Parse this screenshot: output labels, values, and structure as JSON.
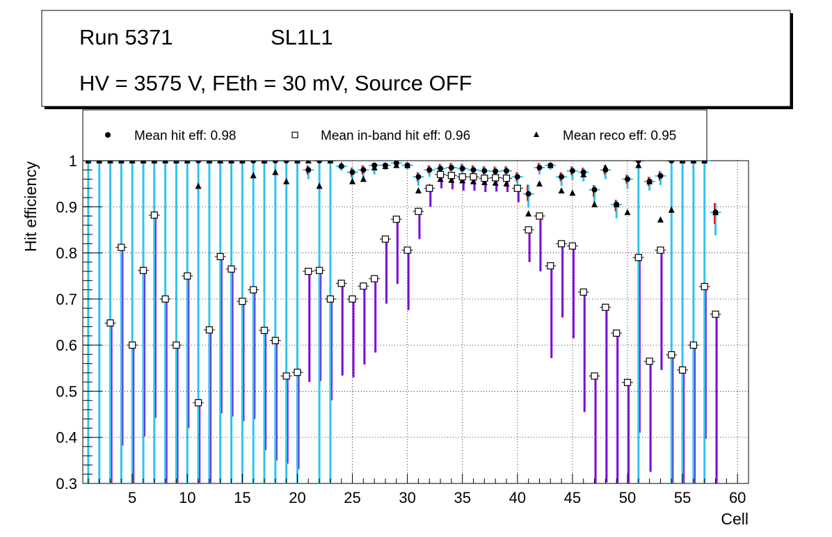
{
  "title_box": {
    "run": "Run 5371",
    "layer": "SL1L1",
    "conditions": "HV = 3575 V, FEth = 30 mV, Source OFF"
  },
  "legend": {
    "hit": "Mean hit  eff: 0.98",
    "inband": "Mean in-band hit eff: 0.96",
    "reco": "Mean reco eff: 0.95"
  },
  "colors": {
    "hit_err": "#ff0000",
    "inband_err": "#7a00d6",
    "reco_err": "#2ec4f0",
    "grid": "#000000"
  },
  "chart_data": {
    "type": "scatter",
    "title": "",
    "xlabel": "Cell",
    "ylabel": "Hit efficiency",
    "xlim": [
      0.5,
      61
    ],
    "ylim": [
      0.3,
      1.0
    ],
    "xticks": [
      5,
      10,
      15,
      20,
      25,
      30,
      35,
      40,
      45,
      50,
      55,
      60
    ],
    "yticks": [
      0.3,
      0.4,
      0.5,
      0.6,
      0.7,
      0.8,
      0.9,
      1.0
    ],
    "ytick_labels": [
      "0.3",
      "0.4",
      "0.5",
      "0.6",
      "0.7",
      "0.8",
      "0.9",
      "1"
    ],
    "cells": [
      1,
      2,
      3,
      4,
      5,
      6,
      7,
      8,
      9,
      10,
      11,
      12,
      13,
      14,
      15,
      16,
      17,
      18,
      19,
      20,
      21,
      22,
      23,
      24,
      25,
      26,
      27,
      28,
      29,
      30,
      31,
      32,
      33,
      34,
      35,
      36,
      37,
      38,
      39,
      40,
      41,
      42,
      43,
      44,
      45,
      46,
      47,
      48,
      49,
      50,
      51,
      52,
      53,
      54,
      55,
      56,
      57,
      58
    ],
    "series": [
      {
        "name": "Mean hit  eff: 0.98",
        "marker": "circle",
        "values": [
          1.0,
          1.0,
          1.0,
          1.0,
          1.0,
          1.0,
          1.0,
          1.0,
          1.0,
          1.0,
          1.0,
          1.0,
          1.0,
          1.0,
          1.0,
          1.0,
          1.0,
          1.0,
          1.0,
          1.0,
          0.98,
          1.0,
          1.0,
          0.988,
          0.975,
          0.98,
          0.99,
          0.99,
          0.995,
          0.99,
          0.965,
          0.98,
          0.983,
          0.985,
          0.983,
          0.98,
          0.978,
          0.977,
          0.978,
          0.965,
          0.928,
          0.985,
          0.99,
          0.965,
          0.978,
          0.975,
          0.937,
          0.98,
          0.905,
          0.96,
          1.0,
          0.955,
          0.967,
          1.0,
          1.0,
          1.0,
          1.0,
          0.888
        ],
        "err_low": [
          0.7,
          0.7,
          0.7,
          0.7,
          0.7,
          0.7,
          0.7,
          0.7,
          0.7,
          0.7,
          0.7,
          0.7,
          0.7,
          0.7,
          0.7,
          0.7,
          0.7,
          0.7,
          0.7,
          0.7,
          0.02,
          0.7,
          0.7,
          0.01,
          0.02,
          0.02,
          0.02,
          0.01,
          0.01,
          0.01,
          0.02,
          0.015,
          0.015,
          0.015,
          0.015,
          0.015,
          0.015,
          0.015,
          0.015,
          0.02,
          0.03,
          0.015,
          0.01,
          0.02,
          0.02,
          0.02,
          0.03,
          0.02,
          0.03,
          0.02,
          0.7,
          0.02,
          0.02,
          0.7,
          0.7,
          0.7,
          0.7,
          0.05
        ],
        "err_high": [
          0.0,
          0.0,
          0.0,
          0.0,
          0.0,
          0.0,
          0.0,
          0.0,
          0.0,
          0.0,
          0.0,
          0.0,
          0.0,
          0.0,
          0.0,
          0.0,
          0.0,
          0.0,
          0.0,
          0.0,
          0.01,
          0.0,
          0.0,
          0.005,
          0.01,
          0.01,
          0.005,
          0.005,
          0.003,
          0.005,
          0.01,
          0.01,
          0.01,
          0.01,
          0.01,
          0.01,
          0.01,
          0.01,
          0.01,
          0.01,
          0.02,
          0.01,
          0.005,
          0.01,
          0.01,
          0.01,
          0.01,
          0.01,
          0.01,
          0.01,
          0.0,
          0.01,
          0.01,
          0.0,
          0.0,
          0.0,
          0.0,
          0.02
        ]
      },
      {
        "name": "Mean in-band hit eff: 0.96",
        "marker": "open-square",
        "values": [
          null,
          null,
          0.648,
          0.812,
          0.6,
          0.762,
          0.882,
          0.7,
          0.6,
          0.75,
          0.475,
          0.633,
          0.792,
          0.765,
          0.695,
          0.72,
          0.632,
          0.61,
          0.533,
          0.541,
          0.76,
          0.762,
          0.7,
          0.734,
          0.7,
          0.728,
          0.744,
          0.83,
          0.873,
          0.806,
          0.89,
          0.94,
          0.97,
          0.968,
          0.965,
          0.965,
          0.962,
          0.963,
          0.962,
          0.94,
          0.85,
          0.88,
          0.772,
          0.82,
          0.815,
          0.715,
          0.533,
          0.682,
          0.626,
          0.519,
          0.79,
          0.565,
          0.806,
          0.579,
          0.546,
          0.6,
          0.727,
          0.667
        ],
        "err_low": [
          null,
          null,
          0.35,
          0.43,
          0.5,
          0.36,
          0.44,
          0.4,
          0.4,
          0.33,
          0.3,
          0.4,
          0.34,
          0.32,
          0.26,
          0.28,
          0.26,
          0.26,
          0.19,
          0.21,
          0.24,
          0.24,
          0.22,
          0.2,
          0.17,
          0.17,
          0.16,
          0.14,
          0.14,
          0.13,
          0.06,
          0.04,
          0.03,
          0.03,
          0.03,
          0.03,
          0.03,
          0.03,
          0.03,
          0.03,
          0.07,
          0.12,
          0.2,
          0.16,
          0.2,
          0.26,
          0.24,
          0.38,
          0.33,
          0.22,
          0.38,
          0.24,
          0.26,
          0.28,
          0.25,
          0.3,
          0.33,
          0.37
        ]
      },
      {
        "name": "Mean reco eff: 0.95",
        "marker": "triangle",
        "values": [
          1.0,
          1.0,
          1.0,
          1.0,
          1.0,
          1.0,
          1.0,
          1.0,
          1.0,
          1.0,
          0.945,
          1.0,
          1.0,
          1.0,
          1.0,
          0.968,
          1.0,
          0.975,
          0.955,
          1.0,
          1.0,
          0.945,
          1.0,
          0.99,
          0.955,
          0.96,
          0.985,
          0.988,
          0.99,
          0.99,
          0.935,
          0.943,
          0.96,
          0.958,
          0.957,
          0.955,
          0.953,
          0.952,
          0.95,
          0.94,
          0.885,
          0.95,
          0.99,
          0.935,
          0.93,
          0.97,
          0.905,
          0.985,
          0.905,
          0.888,
          0.99,
          0.955,
          0.872,
          0.893,
          1.0,
          1.0,
          1.0,
          0.888
        ]
      }
    ]
  }
}
